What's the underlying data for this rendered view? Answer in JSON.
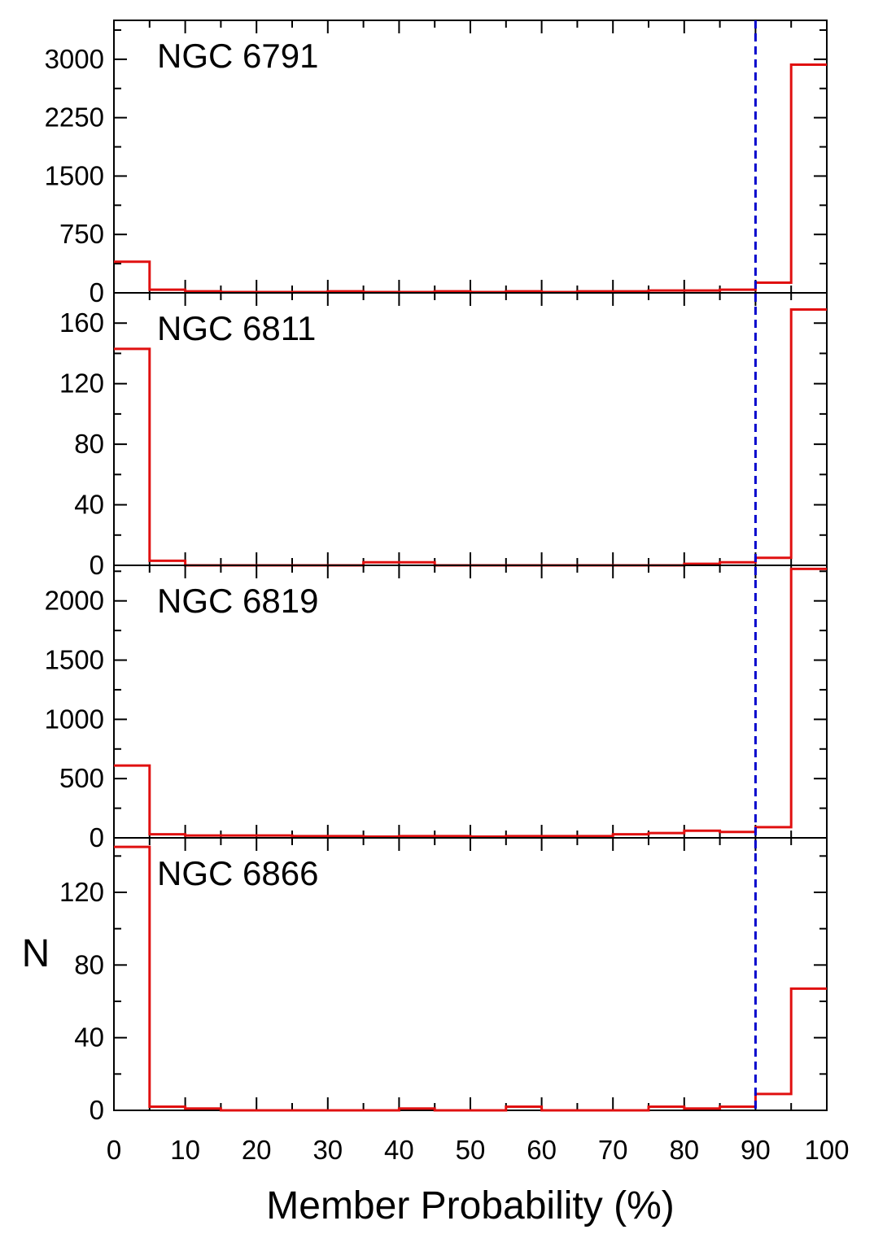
{
  "chart_data": {
    "type": "bar",
    "subtype": "step-histogram",
    "xlabel": "Member Probability (%)",
    "ylabel": "N",
    "xlim": [
      0,
      100
    ],
    "x_ticks": [
      0,
      10,
      20,
      30,
      40,
      50,
      60,
      70,
      80,
      90,
      100
    ],
    "x_tick_labels": [
      "0",
      "10",
      "20",
      "30",
      "40",
      "50",
      "60",
      "70",
      "80",
      "90",
      "100"
    ],
    "bin_edges": [
      0,
      5,
      10,
      15,
      20,
      25,
      30,
      35,
      40,
      45,
      50,
      55,
      60,
      65,
      70,
      75,
      80,
      85,
      90,
      95,
      100
    ],
    "threshold_line": {
      "x": 90,
      "style": "dashed",
      "color": "#0000cc"
    },
    "histogram_color": "#e01010",
    "panels": [
      {
        "name": "NGC 6791",
        "ylim": [
          0,
          3500
        ],
        "y_ticks": [
          0,
          750,
          1500,
          2250,
          3000
        ],
        "y_tick_labels": [
          "0",
          "750",
          "1500",
          "2250",
          "3000"
        ],
        "values": [
          400,
          40,
          20,
          10,
          10,
          10,
          20,
          10,
          10,
          20,
          10,
          20,
          10,
          20,
          20,
          30,
          30,
          40,
          130,
          2930
        ]
      },
      {
        "name": "NGC 6811",
        "ylim": [
          0,
          180
        ],
        "y_ticks": [
          0,
          40,
          80,
          120,
          160
        ],
        "y_tick_labels": [
          "0",
          "40",
          "80",
          "120",
          "160"
        ],
        "values": [
          143,
          3,
          0,
          0,
          0,
          0,
          0,
          2,
          2,
          0,
          0,
          0,
          0,
          0,
          0,
          0,
          1,
          2,
          5,
          169
        ]
      },
      {
        "name": "NGC 6819",
        "ylim": [
          0,
          2300
        ],
        "y_ticks": [
          0,
          500,
          1000,
          1500,
          2000
        ],
        "y_tick_labels": [
          "0",
          "500",
          "1000",
          "1500",
          "2000"
        ],
        "values": [
          610,
          30,
          20,
          20,
          20,
          15,
          15,
          10,
          15,
          15,
          10,
          15,
          15,
          15,
          30,
          40,
          60,
          50,
          90,
          2270
        ]
      },
      {
        "name": "NGC 6866",
        "ylim": [
          0,
          150
        ],
        "y_ticks": [
          0,
          40,
          80,
          120
        ],
        "y_tick_labels": [
          "0",
          "40",
          "80",
          "120"
        ],
        "values": [
          145,
          2,
          1,
          0,
          0,
          0,
          0,
          0,
          1,
          0,
          0,
          2,
          0,
          0,
          0,
          2,
          1,
          2,
          9,
          67
        ]
      }
    ]
  }
}
